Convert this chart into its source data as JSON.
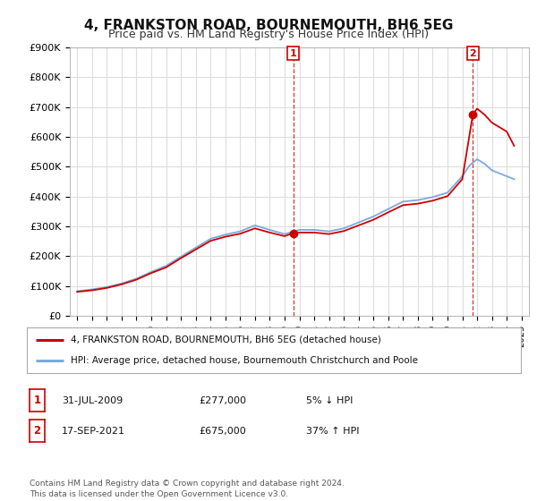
{
  "title": "4, FRANKSTON ROAD, BOURNEMOUTH, BH6 5EG",
  "subtitle": "Price paid vs. HM Land Registry's House Price Index (HPI)",
  "ylabel_ticks": [
    "£0",
    "£100K",
    "£200K",
    "£300K",
    "£400K",
    "£500K",
    "£600K",
    "£700K",
    "£800K",
    "£900K"
  ],
  "ylim": [
    0,
    900000
  ],
  "xlim_start": 1994.5,
  "xlim_end": 2025.5,
  "marker1_x": 2009.58,
  "marker1_y": 277000,
  "marker2_x": 2021.71,
  "marker2_y": 675000,
  "sale_color": "#cc0000",
  "hpi_color": "#7aaadd",
  "legend_sale": "4, FRANKSTON ROAD, BOURNEMOUTH, BH6 5EG (detached house)",
  "legend_hpi": "HPI: Average price, detached house, Bournemouth Christchurch and Poole",
  "table_row1": [
    "1",
    "31-JUL-2009",
    "£277,000",
    "5% ↓ HPI"
  ],
  "table_row2": [
    "2",
    "17-SEP-2021",
    "£675,000",
    "37% ↑ HPI"
  ],
  "footnote": "Contains HM Land Registry data © Crown copyright and database right 2024.\nThis data is licensed under the Open Government Licence v3.0.",
  "background_color": "#ffffff",
  "grid_color": "#dddddd",
  "title_fontsize": 11,
  "subtitle_fontsize": 9,
  "tick_fontsize": 8
}
